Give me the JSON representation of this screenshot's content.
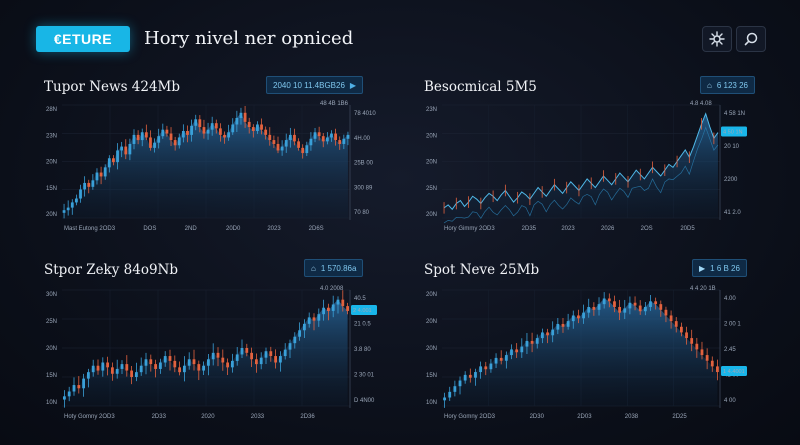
{
  "header": {
    "logo_text": "ETURE",
    "logo_symbol": "€",
    "title": "Hory nivel ner opniced",
    "buttons": [
      {
        "name": "settings-button",
        "icon": "gear-icon"
      },
      {
        "name": "search-button",
        "icon": "search-icon"
      }
    ]
  },
  "colors": {
    "accent": "#18b6e6",
    "up_candle": "#3aa0d8",
    "down_candle": "#e2623f",
    "area_fill": "#1d4f7a",
    "price_badge": "#19b6ea"
  },
  "panels": [
    {
      "title": "Tupor News 424Mb",
      "ticker_text": "2040 10 11.4BGB26",
      "ticker_icon": "",
      "ticker_arrow": "▶",
      "ticker_sub": "48 4B 1B6",
      "price_badge": "",
      "y_left": [
        "28N",
        "23N",
        "20N",
        "15N",
        "20N"
      ],
      "y_right": [
        "78 4010",
        "4H.00",
        "25B 00",
        "300 89",
        "70 80"
      ],
      "x_labels": [
        "Mast Eutong 2OD3",
        "DOS",
        "2ND",
        "20D0",
        "2023",
        "2D6S"
      ]
    },
    {
      "title": "Besocmical 5M5",
      "ticker_text": "6 123 26",
      "ticker_icon": "⌂",
      "ticker_arrow": "",
      "ticker_sub": "4.8 4.08",
      "price_badge": "4 50 1N",
      "y_left": [
        "23N",
        "20N",
        "20N",
        "25N",
        "20N"
      ],
      "y_right": [
        "4 58 1N",
        "20 10",
        "2200",
        "41 2.0"
      ],
      "x_labels": [
        "Hory Gimmy 2OD3",
        "2D35",
        "2023",
        "2026",
        "2OS",
        "20D5"
      ]
    },
    {
      "title": "Stpor Zeky 84o9Nb",
      "ticker_text": "1 570.86a",
      "ticker_icon": "⌂",
      "ticker_arrow": "",
      "ticker_sub": "4.0 2008",
      "price_badge": "2 4.001",
      "y_left": [
        "30N",
        "25N",
        "20N",
        "15N",
        "10N"
      ],
      "y_right": [
        "40.5",
        "21 0.5",
        "3.8 80",
        "2 30 01",
        "D 4N00"
      ],
      "x_labels": [
        "Hoty Gomny 2OD3",
        "2D33",
        "2020",
        "2033",
        "2D36"
      ]
    },
    {
      "title": "Spot Neve 25Mb",
      "ticker_text": "1 6 B 26",
      "ticker_icon": "▶",
      "ticker_arrow": "",
      "ticker_sub": "4 4 20 1B",
      "price_badge": "1 4.4001",
      "y_left": [
        "20N",
        "20N",
        "20N",
        "15N",
        "10N"
      ],
      "y_right": [
        "4.00",
        "2 00 1",
        "2.45",
        "41 00",
        "4 00"
      ],
      "x_labels": [
        "Hory Gomny 2OD3",
        "2D30",
        "2D03",
        "2038",
        "2D25"
      ]
    }
  ],
  "chart_data": [
    {
      "type": "candlestick",
      "title": "Tupor News 424Mb",
      "values": [
        12,
        14,
        18,
        21,
        28,
        33,
        30,
        35,
        41,
        38,
        45,
        52,
        49,
        58,
        61,
        55,
        63,
        70,
        66,
        72,
        68,
        60,
        64,
        69,
        74,
        71,
        66,
        62,
        68,
        73,
        70,
        77,
        82,
        76,
        71,
        74,
        79,
        75,
        70,
        68,
        72,
        78,
        83,
        87,
        80,
        76,
        73,
        78,
        74,
        70,
        66,
        63,
        58,
        61,
        66,
        70,
        65,
        60,
        56,
        62,
        67,
        72,
        69,
        65,
        68,
        71,
        66,
        63,
        67,
        70
      ]
    },
    {
      "type": "area",
      "title": "Besocmical 5M5",
      "values": [
        30,
        32,
        29,
        33,
        35,
        31,
        34,
        38,
        36,
        33,
        37,
        40,
        38,
        35,
        39,
        42,
        38,
        34,
        37,
        41,
        39,
        36,
        40,
        44,
        41,
        38,
        42,
        46,
        43,
        40,
        44,
        48,
        45,
        42,
        46,
        50,
        47,
        44,
        48,
        52,
        49,
        46,
        50,
        54,
        51,
        48,
        52,
        56,
        53,
        50,
        54,
        58,
        55,
        52,
        56,
        60,
        58,
        62,
        66,
        70,
        65,
        72,
        80,
        88,
        95,
        86,
        78,
        82
      ]
    },
    {
      "type": "candlestick",
      "title": "Stpor Zeky 84o9Nb",
      "values": [
        15,
        18,
        22,
        20,
        26,
        30,
        34,
        31,
        36,
        33,
        29,
        32,
        35,
        31,
        27,
        30,
        34,
        38,
        35,
        32,
        36,
        40,
        37,
        33,
        30,
        34,
        38,
        35,
        31,
        34,
        38,
        42,
        39,
        36,
        33,
        37,
        41,
        45,
        42,
        38,
        35,
        39,
        43,
        40,
        36,
        40,
        44,
        48,
        52,
        56,
        60,
        64,
        62,
        66,
        70,
        68,
        72,
        75,
        71,
        68
      ]
    },
    {
      "type": "candlestick",
      "title": "Spot Neve 25Mb",
      "values": [
        10,
        14,
        18,
        22,
        26,
        24,
        28,
        32,
        30,
        34,
        38,
        36,
        40,
        44,
        42,
        46,
        50,
        48,
        52,
        56,
        54,
        58,
        62,
        60,
        64,
        68,
        66,
        70,
        74,
        72,
        76,
        80,
        78,
        74,
        70,
        73,
        77,
        75,
        71,
        74,
        78,
        76,
        72,
        68,
        64,
        60,
        56,
        52,
        48,
        44,
        40,
        36,
        32,
        28
      ]
    }
  ]
}
